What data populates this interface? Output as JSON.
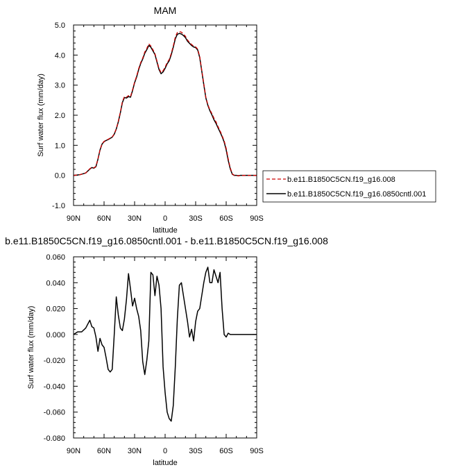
{
  "chart_data": [
    {
      "type": "line",
      "title": "MAM",
      "xlabel": "latitude",
      "ylabel": "Surf water flux (mm/day)",
      "xlim": [
        -90,
        90
      ],
      "ylim": [
        -1.0,
        5.0
      ],
      "x_ticks": [
        -90,
        -60,
        -30,
        0,
        30,
        60,
        90
      ],
      "x_tick_labels": [
        "90N",
        "60N",
        "30N",
        "0",
        "30S",
        "60S",
        "90S"
      ],
      "y_ticks": [
        -1.0,
        0.0,
        1.0,
        2.0,
        3.0,
        4.0,
        5.0
      ],
      "y_tick_labels": [
        "-1.0",
        "0.0",
        "1.0",
        "2.0",
        "3.0",
        "4.0",
        "5.0"
      ],
      "legend_position": "outside-right",
      "series": [
        {
          "name": "b.e11.B1850C5CN.f19_g16.008",
          "color": "#cc0000",
          "dash": "dashed",
          "x": [
            -90,
            -84,
            -78,
            -74,
            -72,
            -70,
            -68,
            -66,
            -64,
            -62,
            -60,
            -58,
            -56,
            -52,
            -50,
            -48,
            -46,
            -44,
            -42,
            -40,
            -38,
            -36,
            -34,
            -32,
            -30,
            -28,
            -26,
            -24,
            -22,
            -20,
            -18,
            -16,
            -14,
            -12,
            -10,
            -8,
            -6,
            -4,
            -2,
            0,
            2,
            4,
            6,
            8,
            10,
            12,
            14,
            16,
            18,
            20,
            22,
            24,
            26,
            28,
            30,
            32,
            34,
            36,
            38,
            40,
            42,
            44,
            46,
            48,
            50,
            52,
            54,
            56,
            58,
            60,
            62,
            64,
            66,
            68,
            70,
            72,
            74,
            76,
            78,
            80,
            82,
            84,
            86,
            88,
            90
          ],
          "values": [
            0.0,
            0.02,
            0.08,
            0.22,
            0.27,
            0.25,
            0.3,
            0.55,
            0.85,
            1.05,
            1.13,
            1.17,
            1.2,
            1.28,
            1.38,
            1.55,
            1.8,
            2.1,
            2.45,
            2.62,
            2.6,
            2.65,
            2.62,
            2.85,
            3.1,
            3.3,
            3.55,
            3.75,
            3.9,
            4.1,
            4.22,
            4.37,
            4.3,
            4.18,
            4.05,
            3.8,
            3.55,
            3.42,
            3.48,
            3.6,
            3.75,
            3.85,
            4.05,
            4.3,
            4.6,
            4.75,
            4.78,
            4.76,
            4.7,
            4.62,
            4.5,
            4.42,
            4.35,
            4.3,
            4.27,
            4.2,
            3.95,
            3.5,
            3.05,
            2.6,
            2.35,
            2.18,
            2.05,
            1.9,
            1.78,
            1.62,
            1.48,
            1.32,
            1.15,
            0.9,
            0.55,
            0.25,
            0.05,
            0.0,
            0.0,
            -0.02,
            0.0,
            0.0,
            0.0,
            0.0,
            0.0,
            0.0,
            0.0,
            0.0,
            0.0
          ]
        },
        {
          "name": "b.e11.B1850C5CN.f19_g16.0850cntl.001",
          "color": "#000000",
          "dash": "solid",
          "x": [
            -90,
            -84,
            -78,
            -74,
            -72,
            -70,
            -68,
            -66,
            -64,
            -62,
            -60,
            -58,
            -56,
            -52,
            -50,
            -48,
            -46,
            -44,
            -42,
            -40,
            -38,
            -36,
            -34,
            -32,
            -30,
            -28,
            -26,
            -24,
            -22,
            -20,
            -18,
            -16,
            -14,
            -12,
            -10,
            -8,
            -6,
            -4,
            -2,
            0,
            2,
            4,
            6,
            8,
            10,
            12,
            14,
            16,
            18,
            20,
            22,
            24,
            26,
            28,
            30,
            32,
            34,
            36,
            38,
            40,
            42,
            44,
            46,
            48,
            50,
            52,
            54,
            56,
            58,
            60,
            62,
            64,
            66,
            68,
            70,
            72,
            74,
            76,
            78,
            80,
            82,
            84,
            86,
            88,
            90
          ],
          "values": [
            0.0,
            0.02,
            0.08,
            0.21,
            0.26,
            0.24,
            0.29,
            0.54,
            0.84,
            1.04,
            1.12,
            1.16,
            1.19,
            1.27,
            1.37,
            1.54,
            1.78,
            2.08,
            2.42,
            2.59,
            2.57,
            2.62,
            2.6,
            2.82,
            3.08,
            3.27,
            3.52,
            3.72,
            3.87,
            4.06,
            4.18,
            4.32,
            4.26,
            4.14,
            4.02,
            3.77,
            3.52,
            3.38,
            3.44,
            3.56,
            3.71,
            3.81,
            4.01,
            4.26,
            4.54,
            4.69,
            4.72,
            4.7,
            4.65,
            4.58,
            4.46,
            4.39,
            4.32,
            4.27,
            4.25,
            4.17,
            3.92,
            3.47,
            3.02,
            2.58,
            2.33,
            2.15,
            2.01,
            1.85,
            1.73,
            1.58,
            1.44,
            1.29,
            1.11,
            0.85,
            0.5,
            0.22,
            0.04,
            0.0,
            0.0,
            -0.01,
            0.0,
            0.0,
            0.0,
            0.0,
            0.0,
            0.0,
            0.0,
            0.0,
            0.0
          ]
        }
      ]
    },
    {
      "type": "line",
      "title": "b.e11.B1850C5CN.f19_g16.0850cntl.001 - b.e11.B1850C5CN.f19_g16.008",
      "xlabel": "latitude",
      "ylabel": "Surf water flux (mm/day)",
      "xlim": [
        -90,
        90
      ],
      "ylim": [
        -0.08,
        0.06
      ],
      "x_ticks": [
        -90,
        -60,
        -30,
        0,
        30,
        60,
        90
      ],
      "x_tick_labels": [
        "90N",
        "60N",
        "30N",
        "0",
        "30S",
        "60S",
        "90S"
      ],
      "y_ticks": [
        -0.08,
        -0.06,
        -0.04,
        -0.02,
        0.0,
        0.02,
        0.04,
        0.06
      ],
      "y_tick_labels": [
        "-0.080",
        "-0.060",
        "-0.040",
        "-0.020",
        "0.000",
        "0.020",
        "0.040",
        "0.060"
      ],
      "series": [
        {
          "color": "#000000",
          "dash": "solid",
          "x": [
            -90,
            -86,
            -82,
            -78,
            -74,
            -72,
            -70,
            -68,
            -66,
            -64,
            -62,
            -60,
            -58,
            -56,
            -54,
            -52,
            -50,
            -48,
            -46,
            -44,
            -42,
            -40,
            -38,
            -36,
            -34,
            -32,
            -30,
            -28,
            -26,
            -24,
            -22,
            -20,
            -18,
            -16,
            -14,
            -12,
            -10,
            -8,
            -6,
            -4,
            -2,
            0,
            2,
            4,
            6,
            8,
            10,
            12,
            14,
            16,
            18,
            20,
            22,
            24,
            26,
            28,
            30,
            32,
            34,
            36,
            38,
            40,
            42,
            44,
            46,
            48,
            50,
            52,
            54,
            56,
            58,
            60,
            62,
            64,
            66,
            68,
            70,
            72,
            74,
            76,
            78,
            80,
            82,
            84,
            86,
            88,
            90
          ],
          "values": [
            0.0,
            0.002,
            0.002,
            0.005,
            0.011,
            0.006,
            0.005,
            -0.002,
            -0.013,
            -0.003,
            -0.008,
            -0.01,
            -0.018,
            -0.027,
            -0.029,
            -0.027,
            0.0,
            0.029,
            0.015,
            0.005,
            0.003,
            0.012,
            0.027,
            0.047,
            0.035,
            0.022,
            0.028,
            0.02,
            0.014,
            0.003,
            -0.021,
            -0.031,
            -0.02,
            -0.005,
            0.048,
            0.046,
            0.03,
            0.045,
            0.038,
            0.02,
            -0.025,
            -0.045,
            -0.06,
            -0.065,
            -0.067,
            -0.055,
            -0.025,
            0.012,
            0.038,
            0.04,
            0.03,
            0.02,
            0.01,
            -0.002,
            0.004,
            -0.005,
            0.01,
            0.018,
            0.02,
            0.03,
            0.04,
            0.048,
            0.052,
            0.04,
            0.04,
            0.05,
            0.045,
            0.04,
            0.048,
            0.02,
            0.0,
            -0.002,
            0.001,
            0.0,
            0.0,
            0.0,
            0.0,
            0.0,
            0.0,
            0.0,
            0.0,
            0.0,
            0.0,
            0.0,
            0.0,
            0.0,
            0.0
          ]
        }
      ]
    }
  ]
}
